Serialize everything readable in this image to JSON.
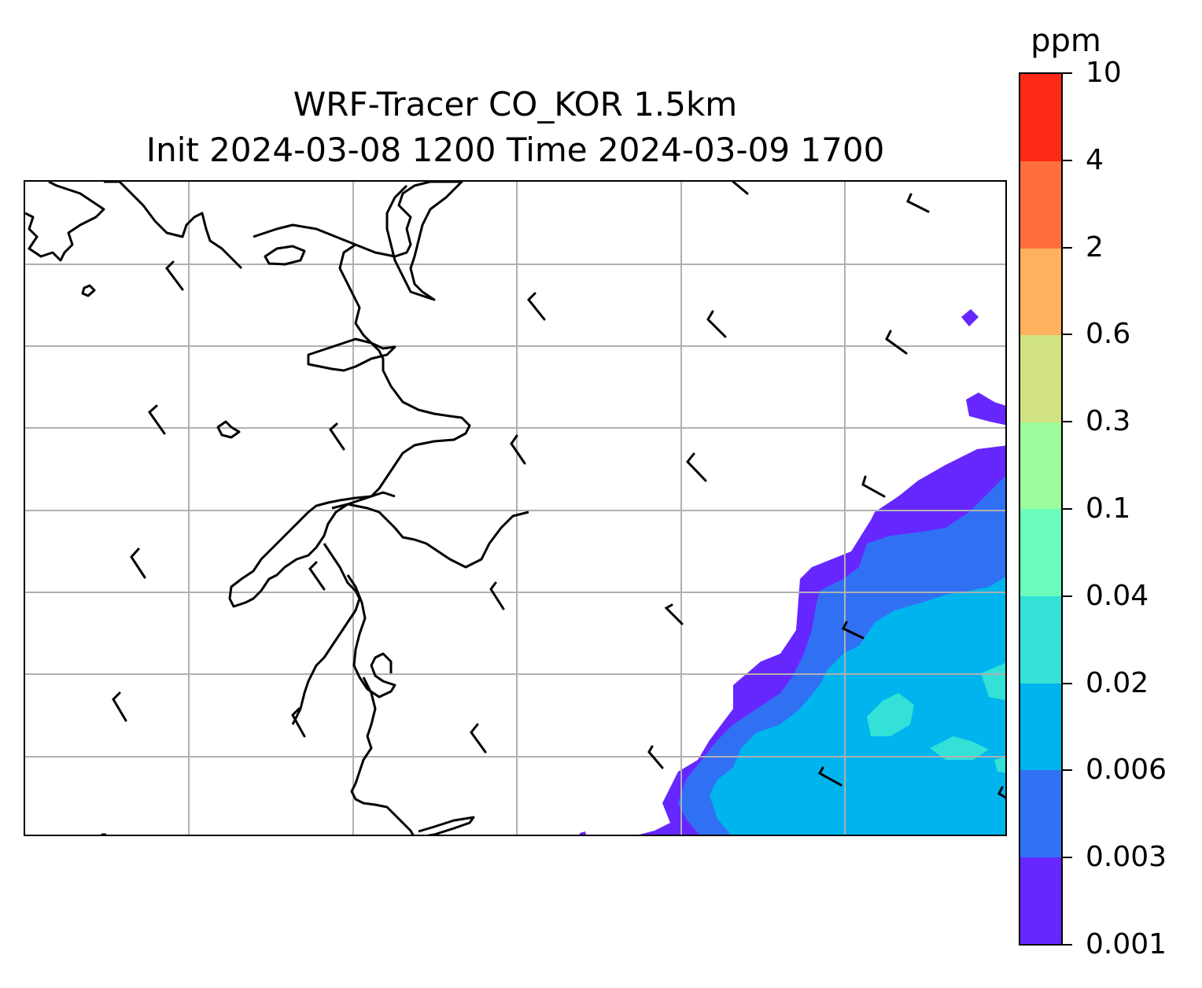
{
  "title": {
    "line1": "WRF-Tracer CO_KOR 1.5km",
    "line2": "Init 2024-03-08 1200 Time 2024-03-09 1700"
  },
  "colorbar": {
    "unit": "ppm",
    "levels": [
      "0.001",
      "0.003",
      "0.006",
      "0.02",
      "0.04",
      "0.1",
      "0.3",
      "0.6",
      "2",
      "4",
      "10"
    ],
    "colors": [
      "#6627ff",
      "#3071f4",
      "#00b4ed",
      "#33e1d7",
      "#6cfdbe",
      "#9cfd9c",
      "#d0e281",
      "#ffb160",
      "#ff6e3b",
      "#ff2a15"
    ]
  },
  "map": {
    "gridlines": true,
    "grid_color": "#b0b0b0",
    "coastline_color": "#000000"
  }
}
